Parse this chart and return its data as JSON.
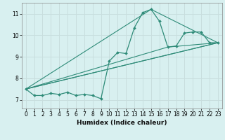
{
  "xlabel": "Humidex (Indice chaleur)",
  "bg_color": "#d8f0f0",
  "grid_color": "#c8dede",
  "line_color": "#2e8b78",
  "xlim": [
    -0.5,
    23.5
  ],
  "ylim": [
    6.6,
    11.5
  ],
  "xticks": [
    0,
    1,
    2,
    3,
    4,
    5,
    6,
    7,
    8,
    9,
    10,
    11,
    12,
    13,
    14,
    15,
    16,
    17,
    18,
    19,
    20,
    21,
    22,
    23
  ],
  "yticks": [
    7,
    8,
    9,
    10,
    11
  ],
  "series": [
    [
      0,
      7.5
    ],
    [
      1,
      7.2
    ],
    [
      2,
      7.2
    ],
    [
      3,
      7.3
    ],
    [
      4,
      7.25
    ],
    [
      5,
      7.35
    ],
    [
      6,
      7.2
    ],
    [
      7,
      7.25
    ],
    [
      8,
      7.2
    ],
    [
      9,
      7.05
    ],
    [
      10,
      8.8
    ],
    [
      11,
      9.2
    ],
    [
      12,
      9.15
    ],
    [
      13,
      10.35
    ],
    [
      14,
      11.05
    ],
    [
      15,
      11.2
    ],
    [
      16,
      10.65
    ],
    [
      17,
      9.45
    ],
    [
      18,
      9.5
    ],
    [
      19,
      10.1
    ],
    [
      20,
      10.15
    ],
    [
      21,
      10.15
    ],
    [
      22,
      9.65
    ],
    [
      23,
      9.65
    ]
  ],
  "extra_lines": [
    [
      [
        0,
        7.5
      ],
      [
        23,
        9.65
      ]
    ],
    [
      [
        0,
        7.5
      ],
      [
        23,
        9.65
      ]
    ],
    [
      [
        0,
        7.5
      ],
      [
        15,
        11.2
      ],
      [
        23,
        9.65
      ]
    ],
    [
      [
        0,
        7.5
      ],
      [
        17,
        9.45
      ],
      [
        23,
        9.65
      ]
    ]
  ]
}
